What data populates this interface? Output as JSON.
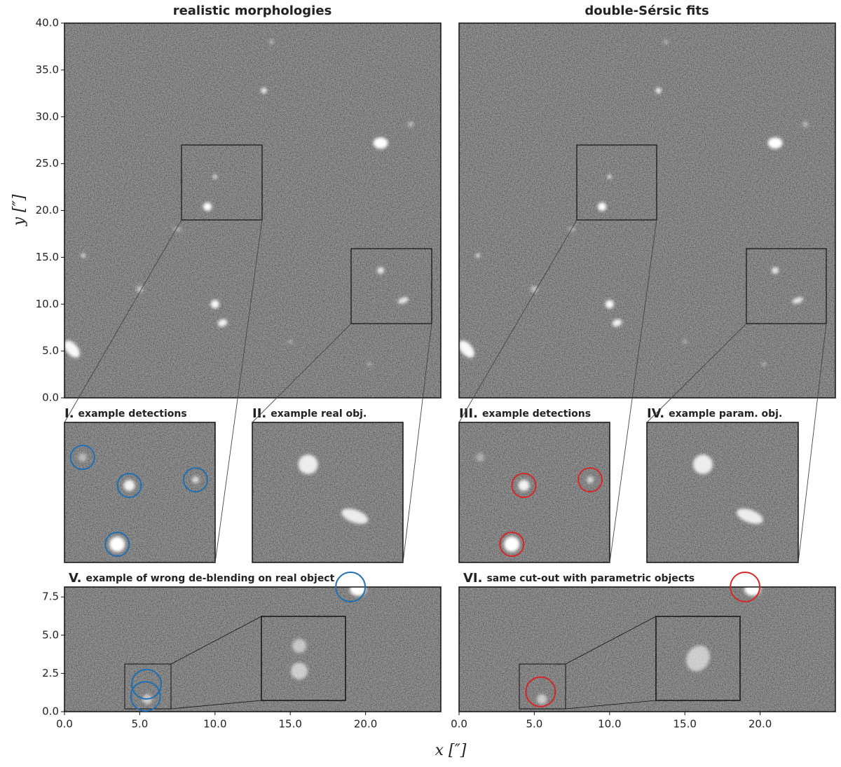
{
  "chart_data": [
    {
      "type": "image",
      "title": "realistic morphologies",
      "color": "#1f6fb2",
      "ylabel": "y [″]",
      "ylim": [
        0,
        40
      ],
      "yticks": [
        {
          "value": 0,
          "label": "0.0"
        },
        {
          "value": 5,
          "label": "5.0"
        },
        {
          "value": 10,
          "label": "10.0"
        },
        {
          "value": 15,
          "label": "15.0"
        },
        {
          "value": 20,
          "label": "20.0"
        },
        {
          "value": 25,
          "label": "25.0"
        },
        {
          "value": 30,
          "label": "30.0"
        },
        {
          "value": 35,
          "label": "35.0"
        },
        {
          "value": 40,
          "label": "40.0"
        }
      ]
    },
    {
      "type": "image",
      "title": "double-Sérsic fits",
      "color": "#d62728"
    },
    {
      "type": "inset",
      "label": "I.",
      "title": "example detections",
      "color": "#1f6fb2"
    },
    {
      "type": "inset",
      "label": "II.",
      "title": "example real obj.",
      "color": "#1f6fb2"
    },
    {
      "type": "inset",
      "label": "III.",
      "title": "example detections",
      "color": "#d62728"
    },
    {
      "type": "inset",
      "label": "IV.",
      "title": "example param. obj.",
      "color": "#d62728"
    },
    {
      "type": "image",
      "label": "V.",
      "title": "example of wrong de-blending on real object",
      "color": "#1f6fb2",
      "xlabel": "x [″]",
      "xlim": [
        0,
        25
      ],
      "xticks": [
        {
          "value": 0,
          "label": "0.0"
        },
        {
          "value": 5,
          "label": "5.0"
        },
        {
          "value": 10,
          "label": "10.0"
        },
        {
          "value": 15,
          "label": "15.0"
        },
        {
          "value": 20,
          "label": "20.0"
        }
      ],
      "ylim": [
        0,
        8.15
      ],
      "yticks": [
        {
          "value": 0,
          "label": "0.0"
        },
        {
          "value": 2.5,
          "label": "2.5"
        },
        {
          "value": 5,
          "label": "5.0"
        },
        {
          "value": 7.5,
          "label": "7.5"
        }
      ]
    },
    {
      "type": "image",
      "label": "VI.",
      "title": "same cut-out with parametric objects",
      "color": "#d62728",
      "xlim": [
        0,
        25
      ],
      "xticks": [
        {
          "value": 0,
          "label": "0.0"
        },
        {
          "value": 5,
          "label": "5.0"
        },
        {
          "value": 10,
          "label": "10.0"
        },
        {
          "value": 15,
          "label": "15.0"
        },
        {
          "value": 20,
          "label": "20.0"
        }
      ]
    }
  ]
}
